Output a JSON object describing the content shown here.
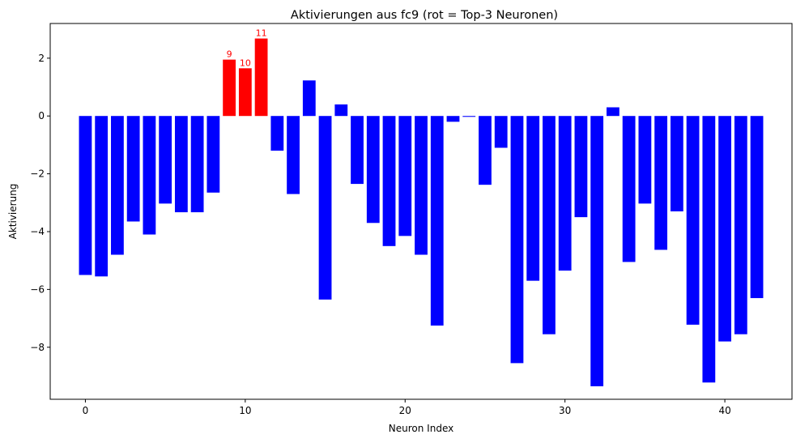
{
  "chart_data": {
    "type": "bar",
    "title": "Aktivierungen aus fc9 (rot = Top-3 Neuronen)",
    "xlabel": "Neuron Index",
    "ylabel": "Aktivierung",
    "xlim": [
      -2.2,
      44.2
    ],
    "ylim": [
      -9.8,
      3.2
    ],
    "x_ticks": [
      0,
      10,
      20,
      30,
      40
    ],
    "y_ticks": [
      2,
      0,
      -2,
      -4,
      -6,
      -8
    ],
    "y_tick_labels": [
      "2",
      "0",
      "−2",
      "−4",
      "−6",
      "−8"
    ],
    "grid": false,
    "colors": {
      "default": "#0000ff",
      "highlight": "#ff0000",
      "label": "#ff0000"
    },
    "highlight_indices": [
      9,
      10,
      11
    ],
    "highlight_labels": [
      "9",
      "10",
      "11"
    ],
    "categories": [
      0,
      1,
      2,
      3,
      4,
      5,
      6,
      7,
      8,
      9,
      10,
      11,
      12,
      13,
      14,
      15,
      16,
      17,
      18,
      19,
      20,
      21,
      22,
      23,
      24,
      25,
      26,
      27,
      28,
      29,
      30,
      31,
      32,
      33,
      34,
      35,
      36,
      37,
      38,
      39,
      40,
      41,
      42
    ],
    "values": [
      -5.5,
      -5.55,
      -4.8,
      -3.65,
      -4.1,
      -3.03,
      -3.33,
      -3.33,
      -2.65,
      1.95,
      1.65,
      2.68,
      -1.2,
      -2.7,
      1.23,
      -6.35,
      0.4,
      -2.35,
      -3.7,
      -4.5,
      -4.15,
      -4.8,
      -7.25,
      -0.2,
      -0.03,
      -2.38,
      -1.1,
      -8.55,
      -5.7,
      -7.55,
      -5.35,
      -3.5,
      -9.35,
      0.3,
      -5.05,
      -3.03,
      -4.63,
      -3.3,
      -7.22,
      -9.22,
      -7.8,
      -7.55,
      -6.3
    ]
  }
}
